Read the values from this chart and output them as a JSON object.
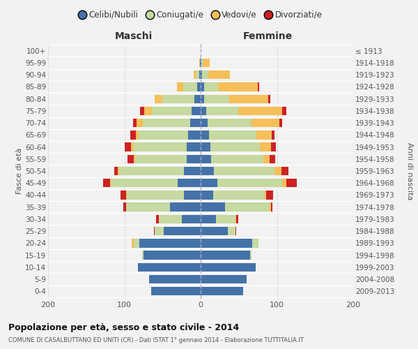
{
  "age_groups": [
    "0-4",
    "5-9",
    "10-14",
    "15-19",
    "20-24",
    "25-29",
    "30-34",
    "35-39",
    "40-44",
    "45-49",
    "50-54",
    "55-59",
    "60-64",
    "65-69",
    "70-74",
    "75-79",
    "80-84",
    "85-89",
    "90-94",
    "95-99",
    "100+"
  ],
  "birth_years": [
    "2009-2013",
    "2004-2008",
    "1999-2003",
    "1994-1998",
    "1989-1993",
    "1984-1988",
    "1979-1983",
    "1974-1978",
    "1969-1973",
    "1964-1968",
    "1959-1963",
    "1954-1958",
    "1949-1953",
    "1944-1948",
    "1939-1943",
    "1934-1938",
    "1929-1933",
    "1924-1928",
    "1919-1923",
    "1914-1918",
    "≤ 1913"
  ],
  "males_celibe": [
    65,
    68,
    82,
    75,
    80,
    48,
    25,
    40,
    22,
    30,
    22,
    18,
    18,
    16,
    14,
    12,
    8,
    5,
    2,
    1,
    0
  ],
  "males_coniugato": [
    0,
    0,
    0,
    2,
    8,
    12,
    30,
    58,
    75,
    88,
    85,
    68,
    70,
    65,
    62,
    52,
    42,
    18,
    4,
    0,
    0
  ],
  "males_vedovo": [
    0,
    0,
    0,
    0,
    2,
    0,
    0,
    0,
    1,
    1,
    2,
    2,
    3,
    4,
    8,
    10,
    10,
    8,
    3,
    1,
    0
  ],
  "males_divorziato": [
    0,
    0,
    0,
    0,
    0,
    1,
    3,
    3,
    7,
    9,
    4,
    8,
    9,
    7,
    5,
    5,
    0,
    0,
    0,
    0,
    0
  ],
  "fem_nubile": [
    56,
    60,
    72,
    65,
    68,
    36,
    20,
    32,
    16,
    22,
    17,
    14,
    13,
    11,
    9,
    7,
    5,
    5,
    2,
    1,
    0
  ],
  "fem_coniugata": [
    0,
    0,
    0,
    2,
    8,
    10,
    26,
    58,
    68,
    85,
    80,
    68,
    65,
    62,
    58,
    42,
    32,
    18,
    8,
    2,
    0
  ],
  "fem_vedova": [
    0,
    0,
    0,
    0,
    0,
    0,
    1,
    2,
    2,
    5,
    9,
    8,
    14,
    20,
    36,
    58,
    52,
    52,
    28,
    9,
    0
  ],
  "fem_divorziata": [
    0,
    0,
    0,
    0,
    0,
    1,
    2,
    2,
    9,
    14,
    9,
    8,
    7,
    4,
    4,
    5,
    2,
    2,
    0,
    0,
    0
  ],
  "colors": {
    "celibe": "#4472a8",
    "coniugato": "#c5d9a0",
    "vedovo": "#f5bf5a",
    "divorziato": "#cc2222"
  },
  "legend_labels": [
    "Celibi/Nubili",
    "Coniugati/e",
    "Vedovi/e",
    "Divorziati/e"
  ],
  "title": "Popolazione per età, sesso e stato civile - 2014",
  "subtitle": "COMUNE DI CASALBUTTANO ED UNITI (CR) - Dati ISTAT 1° gennaio 2014 - Elaborazione TUTTITALIA.IT",
  "xlabel_maschi": "Maschi",
  "xlabel_femmine": "Femmine",
  "ylabel_left": "Fasce di età",
  "ylabel_right": "Anni di nascita",
  "xlim": 200,
  "bg_color": "#f2f2f2",
  "grid_color": "#cccccc"
}
